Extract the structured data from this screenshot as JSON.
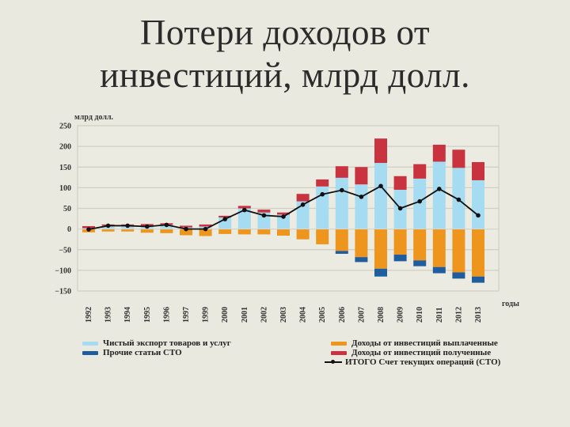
{
  "slide": {
    "title_line1": "Потери доходов от",
    "title_line2": "инвестиций, млрд долл."
  },
  "chart_data": {
    "type": "bar",
    "stacked": true,
    "title": "Потери доходов от инвестиций, млрд долл.",
    "ylabel": "млрд долл.",
    "xlabel": "годы",
    "ylim": [
      -150,
      250
    ],
    "yticks": [
      250,
      200,
      150,
      100,
      50,
      0,
      -50,
      -100,
      -150
    ],
    "ytick_labels": [
      "250",
      "200",
      "150",
      "100",
      "50",
      "0",
      "−50",
      "−100",
      "−150"
    ],
    "grid": true,
    "legend_position": "bottom",
    "categories": [
      "1992",
      "1993",
      "1994",
      "1995",
      "1996",
      "1997",
      "1999",
      "2000",
      "2001",
      "2002",
      "2003",
      "2004",
      "2005",
      "2006",
      "2007",
      "2008",
      "2009",
      "2010",
      "2011",
      "2012",
      "2013"
    ],
    "series": [
      {
        "name": "Чистый экспорт товаров и услуг",
        "color": "#a6dcf2",
        "kind": "bar",
        "values": [
          2,
          8,
          8,
          6,
          10,
          4,
          6,
          28,
          50,
          40,
          35,
          67,
          103,
          124,
          108,
          160,
          95,
          122,
          163,
          148,
          118
        ]
      },
      {
        "name": "Доходы от инвестиций полученные",
        "color": "#c8333f",
        "kind": "bar",
        "values": [
          5,
          3,
          3,
          6,
          4,
          4,
          5,
          4,
          6,
          7,
          5,
          18,
          17,
          28,
          42,
          59,
          33,
          35,
          41,
          44,
          44
        ]
      },
      {
        "name": "Доходы от инвестиций выплаченные",
        "color": "#ee951e",
        "kind": "bar",
        "values": [
          -8,
          -6,
          -6,
          -9,
          -10,
          -15,
          -17,
          -12,
          -13,
          -13,
          -16,
          -25,
          -37,
          -53,
          -68,
          -96,
          -62,
          -76,
          -92,
          -105,
          -115
        ]
      },
      {
        "name": "Прочие статьи СТО",
        "color": "#1f5d9e",
        "kind": "bar",
        "values": [
          0,
          0,
          0,
          0,
          0,
          0,
          0,
          0,
          0,
          0,
          0,
          0,
          0,
          -7,
          -12,
          -19,
          -16,
          -14,
          -15,
          -15,
          -15
        ]
      },
      {
        "name": "ИТОГО Счет текущих операций (СТО)",
        "color": "#111111",
        "kind": "line",
        "values": [
          -1,
          8,
          8,
          6,
          10,
          0,
          0,
          24,
          46,
          33,
          30,
          59,
          84,
          94,
          78,
          104,
          50,
          67,
          97,
          71,
          33
        ]
      }
    ]
  },
  "legend": {
    "left": [
      {
        "label": "Чистый экспорт товаров и услуг",
        "color": "#a6dcf2"
      },
      {
        "label": "Прочие статьи СТО",
        "color": "#1f5d9e"
      }
    ],
    "right": [
      {
        "label": "Доходы от инвестиций выплаченные",
        "color": "#ee951e"
      },
      {
        "label": "Доходы от инвестиций полученные",
        "color": "#c8333f"
      },
      {
        "label": "ИТОГО Счет текущих операций (СТО)",
        "color": "#111111"
      }
    ]
  }
}
